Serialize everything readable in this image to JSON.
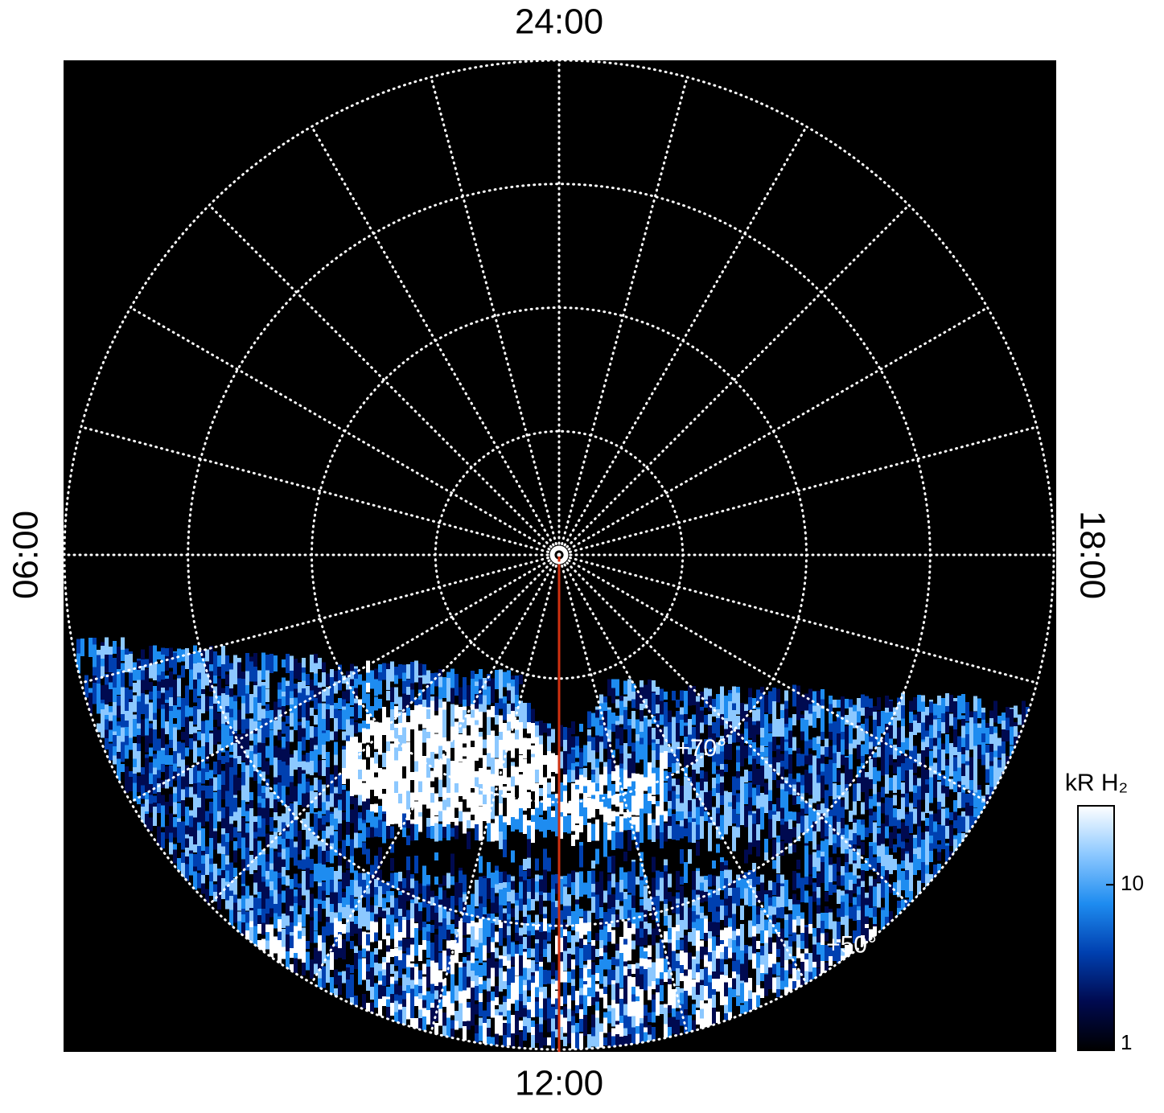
{
  "chart_data": {
    "type": "polar-map",
    "lt_ticks": [
      {
        "value": 24,
        "label": "24:00"
      },
      {
        "value": 6,
        "label": "06:00"
      },
      {
        "value": 12,
        "label": "12:00"
      },
      {
        "value": 18,
        "label": "18:00"
      }
    ],
    "latlim": [
      90,
      50
    ],
    "lat_ticks": [
      80,
      {
        "value": 70,
        "label": "+70°"
      },
      60,
      {
        "value": 50,
        "label": "+50°"
      }
    ],
    "colorbar": {
      "label": "kR H₂",
      "lim": [
        1,
        30
      ],
      "ticks": [
        1,
        10
      ],
      "log": true,
      "colors": [
        "#000000",
        "#000a50",
        "#0040b0",
        "#1e8cf0",
        "#8cc8ff",
        "#ffffff"
      ]
    }
  }
}
